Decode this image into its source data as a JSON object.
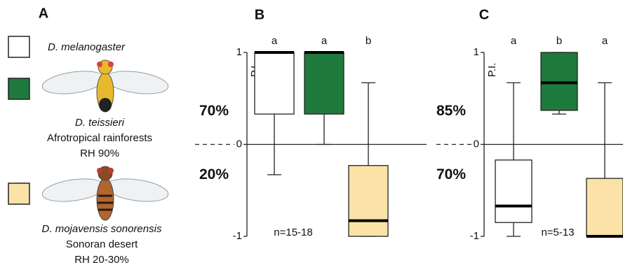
{
  "legend_panel": {
    "label": "A",
    "entries": [
      {
        "color": "#ffffff",
        "lines": [
          "D. melanogaster"
        ]
      },
      {
        "color": "#1f7a3d",
        "lines": [
          "D. teissieri",
          "Afrotropical rainforests",
          "RH 90%"
        ]
      },
      {
        "color": "#fbe3a8",
        "lines": [
          "D. mojavensis sonorensis",
          "Sonoran desert",
          "RH 20-30%"
        ]
      }
    ]
  },
  "chart_data": [
    {
      "type": "box",
      "panel_label": "B",
      "ylabel": "P.I.",
      "ylim": [
        -1,
        1
      ],
      "yticks": [
        -1,
        0,
        1
      ],
      "side_labels": [
        "70%",
        "20%"
      ],
      "note": "n=15-18",
      "boxes": [
        {
          "color": "#ffffff",
          "letter": "a",
          "whislo": -0.33,
          "q1": 0.33,
          "med": 1,
          "q3": 1,
          "whishi": 1
        },
        {
          "color": "#1f7a3d",
          "letter": "a",
          "whislo": 0,
          "q1": 0.33,
          "med": 1,
          "q3": 1,
          "whishi": 1
        },
        {
          "color": "#fbe3a8",
          "letter": "b",
          "whislo": -1,
          "q1": -1,
          "med": -0.83,
          "q3": -0.23,
          "whishi": 0.67
        }
      ]
    },
    {
      "type": "box",
      "panel_label": "C",
      "ylabel": "P.I.",
      "ylim": [
        -1,
        1
      ],
      "yticks": [
        -1,
        0,
        1
      ],
      "side_labels": [
        "85%",
        "70%"
      ],
      "note": "n=5-13",
      "boxes": [
        {
          "color": "#ffffff",
          "letter": "a",
          "whislo": -1,
          "q1": -0.85,
          "med": -0.67,
          "q3": -0.17,
          "whishi": 0.67
        },
        {
          "color": "#1f7a3d",
          "letter": "b",
          "whislo": 0.33,
          "q1": 0.37,
          "med": 0.67,
          "q3": 1,
          "whishi": 1
        },
        {
          "color": "#fbe3a8",
          "letter": "a",
          "whislo": -1,
          "q1": -1,
          "med": -1,
          "q3": -0.37,
          "whishi": 0.67
        }
      ]
    }
  ]
}
